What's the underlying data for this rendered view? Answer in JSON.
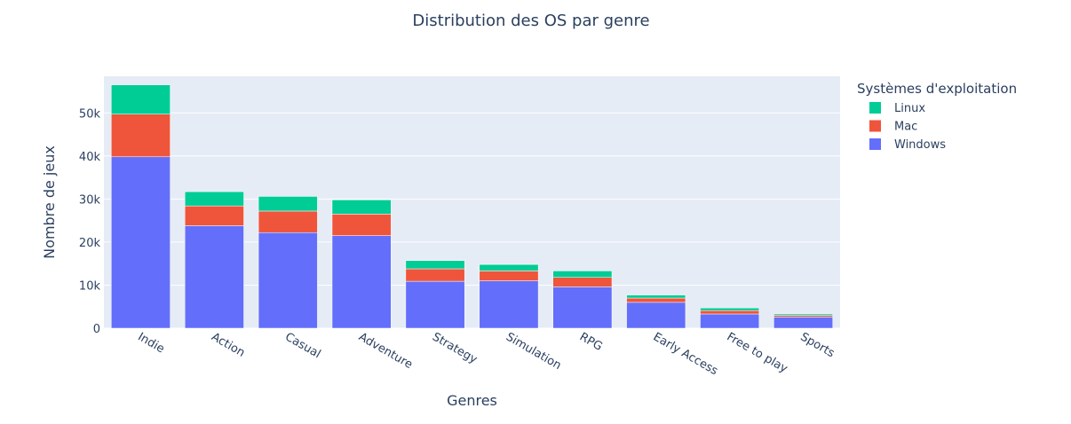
{
  "chart_data": {
    "type": "bar",
    "stacked": true,
    "title": "Distribution des OS par genre",
    "xlabel": "Genres",
    "ylabel": "Nombre de jeux",
    "ylim": [
      0,
      58500
    ],
    "yticks": [
      0,
      10000,
      20000,
      30000,
      40000,
      50000
    ],
    "ytick_labels": [
      "0",
      "10k",
      "20k",
      "30k",
      "40k",
      "50k"
    ],
    "grid": true,
    "legend_title": "Systèmes d'exploitation",
    "legend_position": "top-right",
    "categories": [
      "Indie",
      "Action",
      "Casual",
      "Adventure",
      "Strategy",
      "Simulation",
      "RPG",
      "Early Access",
      "Free to play",
      "Sports"
    ],
    "series": [
      {
        "name": "Windows",
        "color": "#636efa",
        "values": [
          39800,
          23800,
          22200,
          21500,
          10900,
          11000,
          9600,
          6000,
          3300,
          2600
        ]
      },
      {
        "name": "Mac",
        "color": "#ef553b",
        "values": [
          9900,
          4600,
          5000,
          5000,
          2900,
          2300,
          2200,
          1000,
          800,
          400
        ]
      },
      {
        "name": "Linux",
        "color": "#00cc96",
        "values": [
          6800,
          3300,
          3400,
          3300,
          1900,
          1500,
          1500,
          700,
          600,
          300
        ]
      }
    ],
    "legend_order": [
      "Linux",
      "Mac",
      "Windows"
    ]
  }
}
